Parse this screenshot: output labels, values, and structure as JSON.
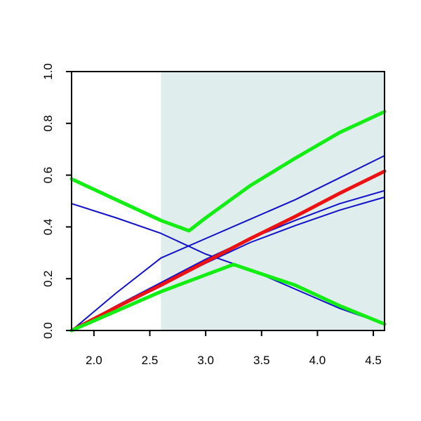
{
  "chart_data": {
    "type": "line",
    "title": "",
    "xlabel": "",
    "ylabel": "",
    "xlim": [
      1.8,
      4.6
    ],
    "ylim": [
      0,
      1
    ],
    "x_ticks": [
      2.0,
      2.5,
      3.0,
      3.5,
      4.0,
      4.5
    ],
    "y_ticks": [
      0.0,
      0.2,
      0.4,
      0.6,
      0.8,
      1.0
    ],
    "x_tick_labels": [
      "2.0",
      "2.5",
      "3.0",
      "3.5",
      "4.0",
      "4.5"
    ],
    "y_tick_labels": [
      "0.0",
      "0.2",
      "0.4",
      "0.6",
      "0.8",
      "1.0"
    ],
    "grid": false,
    "legend": "none",
    "shaded_region": {
      "x_from": 2.6,
      "x_to": 4.6,
      "color": "#e0eded"
    },
    "series": [
      {
        "color": "#1010cc",
        "width": "thin",
        "points": [
          [
            1.8,
            0.49
          ],
          [
            2.2,
            0.435
          ],
          [
            2.6,
            0.375
          ],
          [
            3.0,
            0.295
          ],
          [
            3.4,
            0.235
          ],
          [
            3.8,
            0.16
          ],
          [
            4.2,
            0.085
          ],
          [
            4.6,
            0.025
          ]
        ]
      },
      {
        "color": "#1010cc",
        "width": "thin",
        "points": [
          [
            1.8,
            0.0
          ],
          [
            2.2,
            0.145
          ],
          [
            2.6,
            0.28
          ],
          [
            3.0,
            0.355
          ],
          [
            3.4,
            0.43
          ],
          [
            3.8,
            0.505
          ],
          [
            4.2,
            0.59
          ],
          [
            4.6,
            0.675
          ]
        ]
      },
      {
        "color": "#1010cc",
        "width": "thin",
        "points": [
          [
            1.8,
            0.0
          ],
          [
            2.2,
            0.095
          ],
          [
            2.6,
            0.185
          ],
          [
            3.0,
            0.275
          ],
          [
            3.4,
            0.355
          ],
          [
            3.8,
            0.425
          ],
          [
            4.2,
            0.49
          ],
          [
            4.6,
            0.54
          ]
        ]
      },
      {
        "color": "#1010cc",
        "width": "thin",
        "points": [
          [
            1.8,
            0.0
          ],
          [
            2.2,
            0.09
          ],
          [
            2.6,
            0.175
          ],
          [
            3.0,
            0.26
          ],
          [
            3.4,
            0.34
          ],
          [
            3.8,
            0.405
          ],
          [
            4.2,
            0.465
          ],
          [
            4.6,
            0.515
          ]
        ]
      },
      {
        "color": "#ee1111",
        "width": "thick",
        "points": [
          [
            1.8,
            0.0
          ],
          [
            2.2,
            0.09
          ],
          [
            2.6,
            0.175
          ],
          [
            3.0,
            0.265
          ],
          [
            3.4,
            0.355
          ],
          [
            3.8,
            0.44
          ],
          [
            4.2,
            0.53
          ],
          [
            4.6,
            0.615
          ]
        ]
      },
      {
        "color": "#11ee11",
        "width": "thick",
        "points": [
          [
            1.8,
            0.585
          ],
          [
            2.2,
            0.505
          ],
          [
            2.6,
            0.425
          ],
          [
            2.85,
            0.385
          ],
          [
            3.0,
            0.435
          ],
          [
            3.4,
            0.56
          ],
          [
            3.8,
            0.665
          ],
          [
            4.2,
            0.765
          ],
          [
            4.6,
            0.845
          ]
        ]
      },
      {
        "color": "#11ee11",
        "width": "thick",
        "points": [
          [
            1.8,
            0.0
          ],
          [
            2.2,
            0.075
          ],
          [
            2.6,
            0.15
          ],
          [
            3.0,
            0.215
          ],
          [
            3.25,
            0.255
          ],
          [
            3.35,
            0.24
          ],
          [
            3.8,
            0.175
          ],
          [
            4.2,
            0.095
          ],
          [
            4.6,
            0.025
          ]
        ]
      }
    ]
  }
}
